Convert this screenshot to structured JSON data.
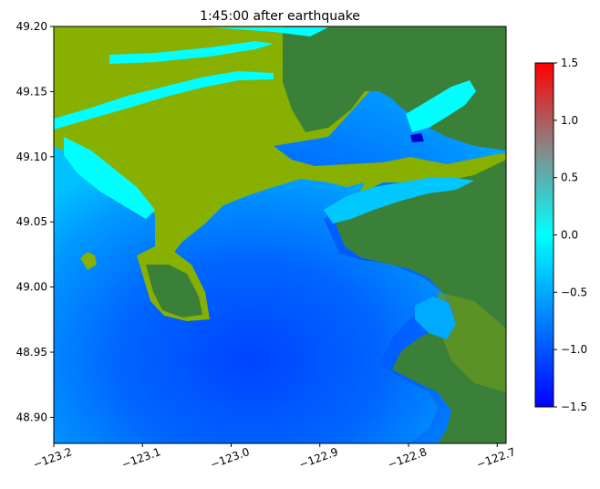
{
  "chart_data": {
    "type": "heatmap",
    "title": "1:45:00 after earthquake",
    "xlabel": "",
    "ylabel": "",
    "xlim": [
      -123.2,
      -122.69
    ],
    "ylim": [
      48.88,
      49.2
    ],
    "x_ticks": [
      -123.2,
      -123.1,
      -123.0,
      -122.9,
      -122.8,
      -122.7
    ],
    "x_tick_labels": [
      "−123.2",
      "−123.1",
      "−123.0",
      "−122.9",
      "−122.8",
      "−122.7"
    ],
    "y_ticks": [
      48.9,
      48.95,
      49.0,
      49.05,
      49.1,
      49.15,
      49.2
    ],
    "y_tick_labels": [
      "48.90",
      "48.95",
      "49.00",
      "49.05",
      "49.10",
      "49.15",
      "49.20"
    ],
    "colorbar": {
      "range": [
        -1.5,
        1.5
      ],
      "ticks": [
        -1.5,
        -1.0,
        -0.5,
        0.0,
        0.5,
        1.0,
        1.5
      ],
      "tick_labels": [
        "−1.5",
        "−1.0",
        "−0.5",
        "0.0",
        "0.5",
        "1.0",
        "1.5"
      ],
      "colors": [
        "#0000ff",
        "#00aaff",
        "#00ffff",
        "#888888",
        "#ff0000"
      ]
    },
    "colors": {
      "land_low": "#88b000",
      "land_high": "#3a8038",
      "flooded": "#00ffff",
      "water_deep": "#0048ff",
      "water_shallow": "#00aaff"
    },
    "grid": false
  }
}
